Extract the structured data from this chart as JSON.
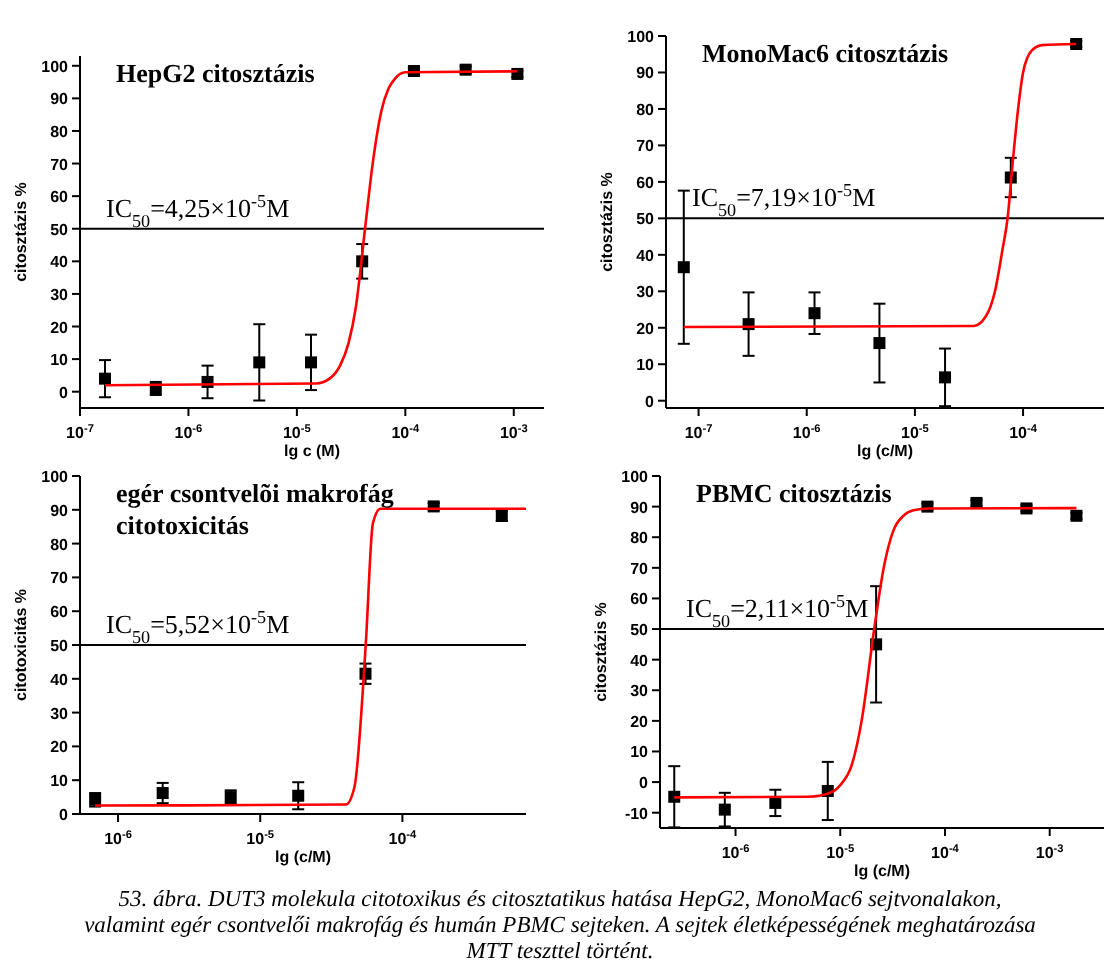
{
  "chart_data": [
    {
      "type": "scatter",
      "title": "HepG2 citosztázis",
      "xlabel": "lg c (M)",
      "ylabel": "citosztázis %",
      "log": "x",
      "xlim": [
        1e-07,
        0.0019
      ],
      "xticks": [
        {
          "value": 1e-07,
          "label": "10$^{-7}$"
        },
        {
          "value": 1e-06,
          "label": "10$^{-6}$"
        },
        {
          "value": 1e-05,
          "label": "10$^{-5}$"
        },
        {
          "value": 0.0001,
          "label": "10$^{-4}$"
        },
        {
          "value": 0.001,
          "label": "10$^{-3}$"
        }
      ],
      "ylim": [
        -5,
        103
      ],
      "yticks": [
        0,
        10,
        20,
        30,
        40,
        50,
        60,
        70,
        80,
        90,
        100
      ],
      "series": [
        {
          "type": "scatter",
          "color": "#000000",
          "marker": "square",
          "x": [
            1.7e-07,
            5e-07,
            1.5e-06,
            4.5e-06,
            1.35e-05,
            4e-05,
            0.00012,
            0.00036,
            0.00108
          ],
          "values": [
            4,
            1,
            3,
            9,
            9,
            40,
            98.4,
            98.8,
            97.5
          ],
          "errors": [
            5.7,
            2,
            5,
            11.7,
            8.5,
            5.3,
            1,
            1,
            1
          ]
        },
        {
          "type": "line",
          "color": "#ff0000",
          "x": [
            1.7e-07,
            1.5e-05,
            2e-05,
            2.5e-05,
            3e-05,
            3.5e-05,
            4.25e-05,
            5e-05,
            6e-05,
            7e-05,
            8e-05,
            0.0001,
            0.00108
          ],
          "values": [
            2,
            2.5,
            4,
            8,
            15,
            26,
            50,
            70,
            86,
            93,
            96,
            98,
            98.3
          ]
        }
      ],
      "ref_lines": [
        {
          "axis": "y",
          "value": 50,
          "color": "#000000"
        }
      ],
      "annotations": [
        "IC$_{50}$=4,25×10$^{-5}$M"
      ]
    },
    {
      "type": "scatter",
      "title": "MonoMac6 citosztázis",
      "xlabel": "lg (c/M)",
      "ylabel": "citosztázis %",
      "log": "x",
      "xlim": [
        5e-08,
        0.00056
      ],
      "xticks": [
        {
          "value": 1e-07,
          "label": "10$^{-7}$"
        },
        {
          "value": 1e-06,
          "label": "10$^{-6}$"
        },
        {
          "value": 1e-05,
          "label": "10$^{-5}$"
        },
        {
          "value": 0.0001,
          "label": "10$^{-4}$"
        }
      ],
      "ylim": [
        -2,
        100
      ],
      "yticks": [
        0,
        10,
        20,
        30,
        40,
        50,
        60,
        70,
        80,
        90,
        100
      ],
      "series": [
        {
          "type": "scatter",
          "color": "#000000",
          "marker": "square",
          "x": [
            7.3e-08,
            2.9e-07,
            1.18e-06,
            4.7e-06,
            1.9e-05,
            7.7e-05,
            0.00031
          ],
          "values": [
            36.6,
            21,
            24,
            15.8,
            6.4,
            61.2,
            97.8
          ],
          "errors": [
            21,
            8.7,
            5.7,
            10.8,
            7.9,
            5.4,
            0.8
          ]
        },
        {
          "type": "line",
          "color": "#ff0000",
          "x": [
            7.3e-08,
            3.5e-05,
            4.5e-05,
            5.5e-05,
            6.5e-05,
            7.19e-05,
            8e-05,
            9e-05,
            0.0001,
            0.00012,
            0.00015,
            0.00031
          ],
          "values": [
            20.2,
            20.5,
            23,
            30,
            42,
            50,
            65,
            80,
            90,
            96,
            97.5,
            97.8
          ]
        }
      ],
      "ref_lines": [
        {
          "axis": "y",
          "value": 50,
          "color": "#000000"
        }
      ],
      "annotations": [
        "IC$_{50}$=7,19×10$^{-5}$M"
      ]
    },
    {
      "type": "scatter",
      "title": "egér csontvelõi makrofág citotoxicitás",
      "xlabel": "lg (c/M)",
      "ylabel": "citotoxicitás %",
      "log": "x",
      "xlim": [
        5.4e-07,
        0.00074
      ],
      "xticks": [
        {
          "value": 1e-06,
          "label": "10$^{-6}$"
        },
        {
          "value": 1e-05,
          "label": "10$^{-5}$"
        },
        {
          "value": 0.0001,
          "label": "10$^{-4}$"
        }
      ],
      "ylim": [
        0,
        100
      ],
      "yticks": [
        0,
        10,
        20,
        30,
        40,
        50,
        60,
        70,
        80,
        90,
        100
      ],
      "series": [
        {
          "type": "scatter",
          "color": "#000000",
          "marker": "square",
          "x": [
            6.9e-07,
            2.06e-06,
            6.2e-06,
            1.85e-05,
            5.5e-05,
            0.000166,
            0.0005
          ],
          "values": [
            4.2,
            6.2,
            5,
            5.4,
            41.5,
            91,
            88.2
          ],
          "errors": [
            2,
            3,
            2,
            4,
            3,
            1,
            1.5
          ]
        },
        {
          "type": "line",
          "color": "#ff0000",
          "x": [
            6.9e-07,
            4e-05,
            4.6e-05,
            5.52e-05,
            6.2e-05,
            7e-05,
            0.00074
          ],
          "values": [
            2.5,
            2.8,
            8,
            50,
            86,
            90.3,
            90.3
          ]
        }
      ],
      "ref_lines": [
        {
          "axis": "y",
          "value": 50,
          "color": "#000000"
        }
      ],
      "annotations": [
        "IC$_{50}$=5,52×10$^{-5}$M"
      ]
    },
    {
      "type": "scatter",
      "title": "PBMC citosztázis",
      "xlabel": "lg (c/M)",
      "ylabel": "citosztázis %",
      "log": "x",
      "xlim": [
        1.9e-07,
        0.0033
      ],
      "xticks": [
        {
          "value": 1e-06,
          "label": "10$^{-6}$"
        },
        {
          "value": 1e-05,
          "label": "10$^{-5}$"
        },
        {
          "value": 0.0001,
          "label": "10$^{-4}$"
        },
        {
          "value": 0.001,
          "label": "10$^{-3}$"
        }
      ],
      "ylim": [
        -15,
        100
      ],
      "yticks": [
        -10,
        0,
        10,
        20,
        30,
        40,
        50,
        60,
        70,
        80,
        90,
        100
      ],
      "series": [
        {
          "type": "scatter",
          "color": "#000000",
          "marker": "square",
          "x": [
            2.6e-07,
            7.9e-07,
            2.4e-06,
            7.6e-06,
            2.2e-05,
            6.8e-05,
            0.0002,
            0.0006,
            0.0018
          ],
          "values": [
            -4.8,
            -9,
            -6.8,
            -2.9,
            45,
            90,
            91.2,
            89.4,
            87
          ],
          "errors": [
            10,
            5.5,
            4.3,
            9.5,
            19,
            1,
            1,
            1,
            1
          ]
        },
        {
          "type": "line",
          "color": "#ff0000",
          "x": [
            2.6e-07,
            5e-06,
            8e-06,
            1e-05,
            1.3e-05,
            1.6e-05,
            2.11e-05,
            2.6e-05,
            3.2e-05,
            4e-05,
            5e-05,
            7e-05,
            0.0018
          ],
          "values": [
            -5,
            -4.8,
            -3.5,
            -1,
            6,
            20,
            50,
            70,
            82,
            87,
            88.8,
            89.4,
            89.5
          ]
        }
      ],
      "ref_lines": [
        {
          "axis": "y",
          "value": 50,
          "color": "#000000"
        }
      ],
      "annotations": [
        "IC$_{50}$=2,11×10$^{-5}$M",
        "53. ábra. DUT3 molekula citotoxikus és citosztatikus hatása HepG2, MonoMac6 sejtvonalakon, valamint egér csontvelői makrofág és humán PBMC sejteken. A sejtek életképességének meghatározása MTT teszttel történt."
      ]
    }
  ]
}
